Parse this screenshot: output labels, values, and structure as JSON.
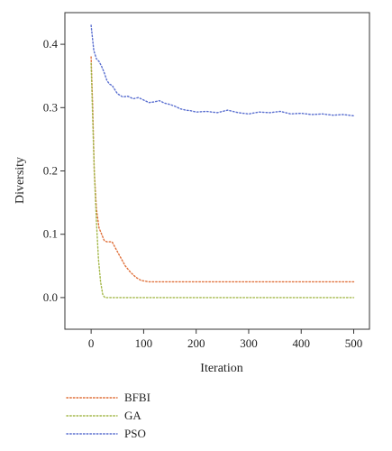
{
  "chart_data": {
    "type": "line",
    "title": "",
    "xlabel": "Iteration",
    "ylabel": "Diversity",
    "xlim": [
      -50,
      530
    ],
    "ylim": [
      -0.05,
      0.45
    ],
    "x_ticks": [
      0,
      100,
      200,
      300,
      400,
      500
    ],
    "y_ticks": [
      0.0,
      0.1,
      0.2,
      0.3,
      0.4
    ],
    "x_tick_labels": [
      "0",
      "100",
      "200",
      "300",
      "400",
      "500"
    ],
    "y_tick_labels": [
      "0.0",
      "0.1",
      "0.2",
      "0.3",
      "0.4"
    ],
    "grid": false,
    "legend_position": "below",
    "series": [
      {
        "name": "BFBI",
        "color": "#e0703a",
        "x": [
          0,
          3,
          6,
          10,
          15,
          20,
          25,
          30,
          40,
          45,
          55,
          65,
          75,
          85,
          95,
          110,
          150,
          200,
          300,
          400,
          500
        ],
        "y": [
          0.38,
          0.3,
          0.2,
          0.14,
          0.11,
          0.1,
          0.09,
          0.088,
          0.088,
          0.08,
          0.065,
          0.05,
          0.04,
          0.032,
          0.027,
          0.025,
          0.025,
          0.025,
          0.025,
          0.025,
          0.025
        ]
      },
      {
        "name": "GA",
        "color": "#a4b84a",
        "x": [
          0,
          3,
          6,
          10,
          14,
          18,
          22,
          26,
          50,
          100,
          200,
          300,
          400,
          500
        ],
        "y": [
          0.37,
          0.28,
          0.2,
          0.12,
          0.06,
          0.025,
          0.005,
          0.0,
          0.0,
          0.0,
          0.0,
          0.0,
          0.0,
          0.0
        ]
      },
      {
        "name": "PSO",
        "color": "#5a6fd0",
        "x": [
          0,
          5,
          10,
          15,
          20,
          25,
          30,
          35,
          40,
          50,
          60,
          70,
          80,
          90,
          100,
          110,
          120,
          130,
          140,
          150,
          160,
          170,
          180,
          190,
          200,
          220,
          240,
          260,
          280,
          300,
          320,
          340,
          360,
          380,
          400,
          420,
          440,
          460,
          480,
          500
        ],
        "y": [
          0.43,
          0.39,
          0.377,
          0.373,
          0.365,
          0.355,
          0.343,
          0.337,
          0.335,
          0.322,
          0.317,
          0.318,
          0.314,
          0.316,
          0.312,
          0.308,
          0.309,
          0.311,
          0.307,
          0.305,
          0.302,
          0.298,
          0.296,
          0.295,
          0.293,
          0.294,
          0.292,
          0.296,
          0.292,
          0.29,
          0.293,
          0.292,
          0.294,
          0.29,
          0.291,
          0.289,
          0.29,
          0.288,
          0.289,
          0.287
        ]
      }
    ]
  }
}
